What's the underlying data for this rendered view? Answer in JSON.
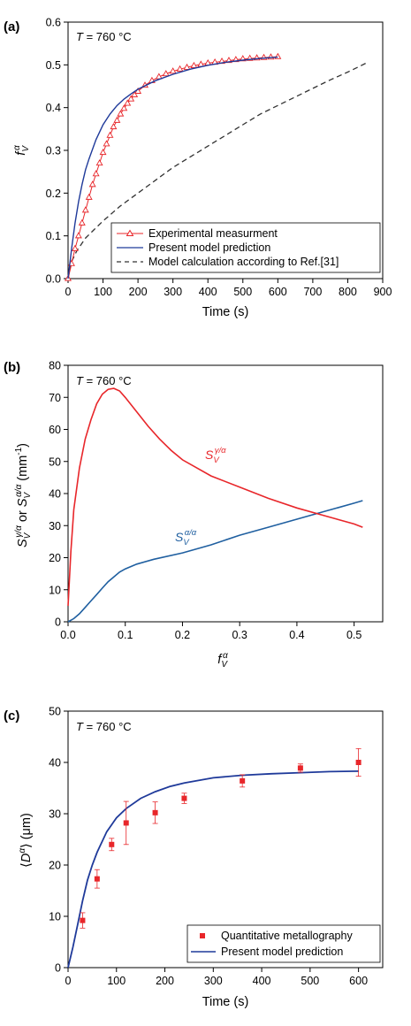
{
  "chart_data": [
    {
      "type": "line",
      "panel_label": "(a)",
      "annotation": "T = 760 °C",
      "xlabel": "Time (s)",
      "ylabel": "fVα",
      "xlim": [
        0,
        900
      ],
      "ylim": [
        0,
        0.6
      ],
      "xticks": [
        0,
        100,
        200,
        300,
        400,
        500,
        600,
        700,
        800,
        900
      ],
      "yticks": [
        0.0,
        0.1,
        0.2,
        0.3,
        0.4,
        0.5,
        0.6
      ],
      "ytick_labels": [
        "0.0",
        "0.1",
        "0.2",
        "0.3",
        "0.4",
        "0.5",
        "0.6"
      ],
      "legend_position": "bottom-right",
      "series": [
        {
          "name": "Experimental measurment",
          "color": "#e8262a",
          "marker": "open-triangle",
          "x": [
            0,
            10,
            20,
            30,
            40,
            50,
            60,
            70,
            80,
            90,
            100,
            110,
            120,
            130,
            140,
            150,
            160,
            170,
            180,
            190,
            200,
            220,
            240,
            260,
            280,
            300,
            320,
            340,
            360,
            380,
            400,
            420,
            440,
            460,
            480,
            500,
            520,
            540,
            560,
            580,
            600
          ],
          "y": [
            0.0,
            0.035,
            0.07,
            0.1,
            0.13,
            0.16,
            0.19,
            0.22,
            0.245,
            0.27,
            0.295,
            0.315,
            0.335,
            0.355,
            0.37,
            0.385,
            0.398,
            0.41,
            0.42,
            0.43,
            0.438,
            0.452,
            0.463,
            0.472,
            0.479,
            0.485,
            0.49,
            0.494,
            0.498,
            0.501,
            0.504,
            0.506,
            0.508,
            0.51,
            0.512,
            0.514,
            0.515,
            0.516,
            0.517,
            0.518,
            0.519
          ]
        },
        {
          "name": "Present model prediction",
          "color": "#1f3a9a",
          "dash": "solid",
          "x": [
            0,
            10,
            20,
            30,
            40,
            50,
            60,
            80,
            100,
            120,
            140,
            160,
            180,
            200,
            250,
            300,
            350,
            400,
            450,
            500,
            550,
            600
          ],
          "y": [
            0.0,
            0.07,
            0.13,
            0.18,
            0.22,
            0.255,
            0.28,
            0.325,
            0.36,
            0.385,
            0.405,
            0.42,
            0.432,
            0.443,
            0.463,
            0.478,
            0.49,
            0.499,
            0.506,
            0.511,
            0.515,
            0.518
          ]
        },
        {
          "name": "Model calculation according to Ref.[31]",
          "color": "#333333",
          "dash": "dashed",
          "x": [
            0,
            10,
            25,
            50,
            75,
            100,
            150,
            200,
            250,
            300,
            350,
            400,
            450,
            500,
            550,
            600,
            650,
            700,
            750,
            800,
            860
          ],
          "y": [
            0.0,
            0.04,
            0.065,
            0.095,
            0.115,
            0.135,
            0.17,
            0.2,
            0.23,
            0.26,
            0.285,
            0.31,
            0.335,
            0.36,
            0.385,
            0.405,
            0.425,
            0.445,
            0.465,
            0.483,
            0.507
          ]
        }
      ]
    },
    {
      "type": "line",
      "panel_label": "(b)",
      "annotation": "T = 760 °C",
      "xlabel": "fVα",
      "ylabel": "SVγ/α or SVα/α (mm⁻¹)",
      "xlim": [
        0,
        0.55
      ],
      "ylim": [
        0,
        80
      ],
      "xticks": [
        0.0,
        0.1,
        0.2,
        0.3,
        0.4,
        0.5
      ],
      "xtick_labels": [
        "0.0",
        "0.1",
        "0.2",
        "0.3",
        "0.4",
        "0.5"
      ],
      "yticks": [
        0,
        10,
        20,
        30,
        40,
        50,
        60,
        70,
        80
      ],
      "series": [
        {
          "name": "SVγ/α",
          "color": "#e8262a",
          "x": [
            0.0,
            0.005,
            0.01,
            0.02,
            0.03,
            0.04,
            0.05,
            0.06,
            0.07,
            0.08,
            0.09,
            0.1,
            0.12,
            0.14,
            0.16,
            0.18,
            0.2,
            0.25,
            0.3,
            0.35,
            0.4,
            0.45,
            0.5,
            0.515
          ],
          "y": [
            5,
            22,
            35,
            48,
            57,
            63,
            68,
            71,
            72.5,
            72.8,
            72,
            70,
            65.5,
            61,
            57,
            53.5,
            50.5,
            45.5,
            42,
            38.5,
            35.5,
            33,
            30.5,
            29.5
          ]
        },
        {
          "name": "SVα/α",
          "color": "#1f5fa0",
          "x": [
            0.0,
            0.01,
            0.02,
            0.03,
            0.04,
            0.05,
            0.06,
            0.07,
            0.08,
            0.09,
            0.1,
            0.12,
            0.15,
            0.2,
            0.25,
            0.3,
            0.35,
            0.4,
            0.45,
            0.5,
            0.515
          ],
          "y": [
            0,
            1,
            2.5,
            4.5,
            6.5,
            8.5,
            10.5,
            12.5,
            14,
            15.5,
            16.5,
            18,
            19.5,
            21.5,
            24,
            27,
            29.5,
            32,
            34.5,
            37,
            37.8
          ]
        }
      ],
      "series_labels": {
        "gamma_alpha": {
          "base": "S",
          "sub": "V",
          "sup": "γ/α"
        },
        "alpha_alpha": {
          "base": "S",
          "sub": "V",
          "sup": "α/α"
        }
      }
    },
    {
      "type": "line",
      "panel_label": "(c)",
      "annotation": "T = 760 °C",
      "xlabel": "Time (s)",
      "ylabel": "⟨Dα⟩ (μm)",
      "xlim": [
        0,
        650
      ],
      "ylim": [
        0,
        50
      ],
      "xticks": [
        0,
        100,
        200,
        300,
        400,
        500,
        600
      ],
      "yticks": [
        0,
        10,
        20,
        30,
        40,
        50
      ],
      "legend_position": "bottom-right",
      "series": [
        {
          "name": "Quantitative metallography",
          "color": "#e8262a",
          "marker": "filled-square",
          "x": [
            30,
            60,
            90,
            120,
            180,
            240,
            360,
            480,
            600
          ],
          "y": [
            9.2,
            17.3,
            24.0,
            28.2,
            30.2,
            33.0,
            36.4,
            38.9,
            40.0
          ],
          "err": [
            1.5,
            1.8,
            1.2,
            4.2,
            2.1,
            1.0,
            1.2,
            0.8,
            2.7
          ]
        },
        {
          "name": "Present model prediction",
          "color": "#1f3a9a",
          "x": [
            0,
            10,
            20,
            30,
            40,
            50,
            60,
            80,
            100,
            120,
            150,
            180,
            210,
            240,
            300,
            360,
            420,
            480,
            540,
            600
          ],
          "y": [
            0,
            4,
            8.5,
            13,
            17,
            20,
            22.5,
            26.5,
            29.2,
            31.0,
            33.0,
            34.3,
            35.3,
            36.0,
            37.0,
            37.5,
            37.8,
            38.0,
            38.2,
            38.3
          ]
        }
      ]
    }
  ]
}
